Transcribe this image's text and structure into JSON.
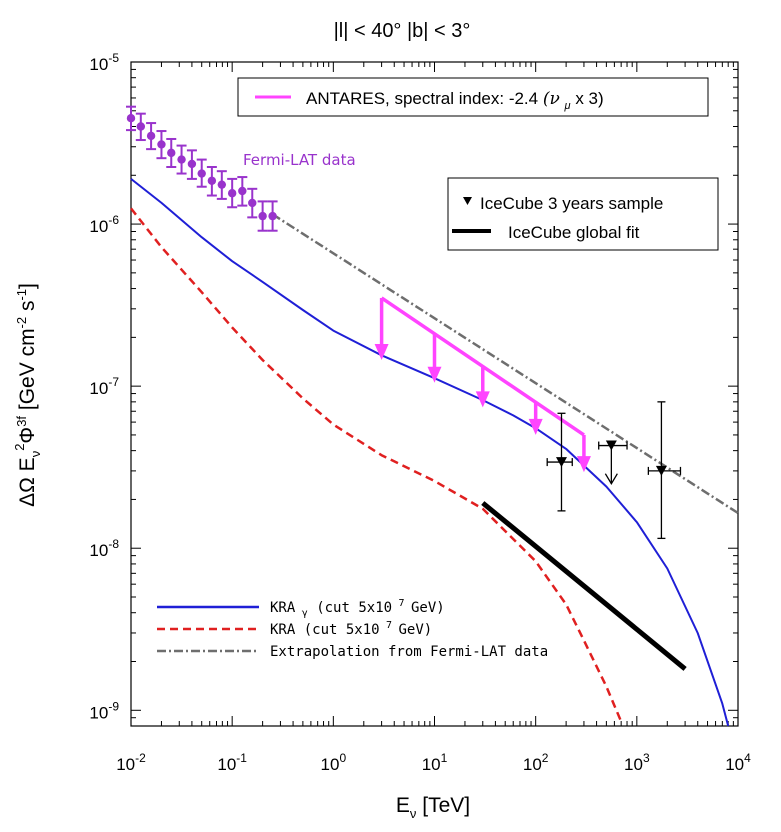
{
  "chart_data": {
    "type": "line",
    "title": "|l| < 40°   |b| < 3°",
    "xlabel": "E_ν [TeV]",
    "ylabel": "ΔΩ E_ν²Φ³ᶠ [GeV cm⁻² s⁻¹]",
    "xscale": "log",
    "yscale": "log",
    "xlim": [
      0.01,
      10000
    ],
    "ylim": [
      8e-10,
      1e-05
    ],
    "x_ticks": [
      {
        "base": "10",
        "exp": "-2"
      },
      {
        "base": "10",
        "exp": "-1"
      },
      {
        "base": "10",
        "exp": "0"
      },
      {
        "base": "10",
        "exp": "1"
      },
      {
        "base": "10",
        "exp": "2"
      },
      {
        "base": "10",
        "exp": "3"
      },
      {
        "base": "10",
        "exp": "4"
      }
    ],
    "y_ticks": [
      {
        "base": "10",
        "exp": "-5"
      },
      {
        "base": "10",
        "exp": "-6"
      },
      {
        "base": "10",
        "exp": "-7"
      },
      {
        "base": "10",
        "exp": "-8"
      },
      {
        "base": "10",
        "exp": "-9"
      }
    ],
    "series": [
      {
        "name": "KRAγ (cut 5x10⁷ GeV)",
        "color": "#1f1fd6",
        "style": "solid",
        "x": [
          0.01,
          0.02,
          0.05,
          0.1,
          0.2,
          0.5,
          1,
          3,
          10,
          30,
          60,
          100,
          200,
          500,
          1000,
          2000,
          4000,
          7000,
          8000
        ],
        "y": [
          1.9e-06,
          1.35e-06,
          8.3e-07,
          5.9e-07,
          4.4e-07,
          2.95e-07,
          2.2e-07,
          1.55e-07,
          1.12e-07,
          8.2e-08,
          6.6e-08,
          5.5e-08,
          4.1e-08,
          2.4e-08,
          1.45e-08,
          7.5e-09,
          3e-09,
          1.1e-09,
          8e-10
        ]
      },
      {
        "name": "KRA (cut 5x10⁷ GeV)",
        "color": "#e02020",
        "style": "dashed",
        "x": [
          0.01,
          0.02,
          0.05,
          0.1,
          0.2,
          0.5,
          1,
          3,
          10,
          30,
          100,
          200,
          300,
          500,
          700
        ],
        "y": [
          1.25e-06,
          7.2e-07,
          3.8e-07,
          2.3e-07,
          1.45e-07,
          8.4e-08,
          5.8e-08,
          3.75e-08,
          2.6e-08,
          1.75e-08,
          8.3e-09,
          4.5e-09,
          2.7e-09,
          1.4e-09,
          8.5e-10
        ]
      },
      {
        "name": "Extrapolation from Fermi-LAT data",
        "color": "#6e6e6e",
        "style": "dashdot",
        "x": [
          0.25,
          10000
        ],
        "y": [
          1.15e-06,
          1.65e-08
        ]
      },
      {
        "name": "IceCube global fit",
        "color": "#000000",
        "style": "thick",
        "x": [
          30,
          3000
        ],
        "y": [
          1.9e-08,
          1.8e-09
        ]
      }
    ],
    "fermi_points": {
      "name": "Fermi-LAT data",
      "color": "#9933cc",
      "x": [
        0.01,
        0.0125,
        0.0158,
        0.02,
        0.025,
        0.0316,
        0.04,
        0.05,
        0.063,
        0.079,
        0.1,
        0.126,
        0.158,
        0.2,
        0.251
      ],
      "y": [
        4.5e-06,
        4e-06,
        3.5e-06,
        3.1e-06,
        2.75e-06,
        2.5e-06,
        2.35e-06,
        2.05e-06,
        1.85e-06,
        1.75e-06,
        1.55e-06,
        1.6e-06,
        1.35e-06,
        1.12e-06,
        1.12e-06
      ],
      "err_low": [
        3.8e-06,
        3.3e-06,
        2.9e-06,
        2.55e-06,
        2.25e-06,
        2.05e-06,
        1.9e-06,
        1.7e-06,
        1.5e-06,
        1.43e-06,
        1.27e-06,
        1.3e-06,
        1.1e-06,
        9.1e-07,
        9.1e-07
      ],
      "err_high": [
        5.3e-06,
        4.8e-06,
        4.2e-06,
        3.75e-06,
        3.35e-06,
        3.05e-06,
        2.85e-06,
        2.5e-06,
        2.25e-06,
        2.12e-06,
        1.9e-06,
        1.95e-06,
        1.65e-06,
        1.38e-06,
        1.38e-06
      ]
    },
    "antares_limits": {
      "name": "ANTARES, spectral index: -2.4 (ν_μ x 3)",
      "color": "#ff44ff",
      "x_start": 3,
      "x_end": 300,
      "y_start": 3.5e-07,
      "y_end": 5e-08,
      "arrow_x": [
        3,
        10,
        30,
        100,
        300
      ],
      "arrow_tip_y": [
        1.45e-07,
        1.05e-07,
        7.4e-08,
        5e-08,
        2.95e-08
      ]
    },
    "icecube_points": [
      {
        "x": 180,
        "y": 3.4e-08,
        "y_low": 1.7e-08,
        "y_high": 6.8e-08,
        "x_low": 130,
        "x_high": 230,
        "upper_limit": false
      },
      {
        "x": 560,
        "y": 4.3e-08,
        "x_low": 420,
        "x_high": 800,
        "upper_limit": true,
        "arrow_to": 2.5e-08
      },
      {
        "x": 1750,
        "y": 3e-08,
        "y_low": 1.15e-08,
        "y_high": 8e-08,
        "x_low": 1300,
        "x_high": 2700,
        "upper_limit": false
      }
    ],
    "legend_top": "ANTARES, spectral index: -2.4",
    "legend_top_suffix": "(ν",
    "legend_top_sub": "μ",
    "legend_top_tail": "x 3)",
    "legend_ice_1": "IceCube 3 years sample",
    "legend_ice_2": "IceCube global fit",
    "legend_kra_gamma_1": "KRA",
    "legend_kra_gamma_sub": "γ",
    "legend_kra_gamma_2": " (cut 5x10",
    "legend_kra_gamma_exp": "7",
    "legend_kra_gamma_3": " GeV)",
    "legend_kra_1": "KRA (cut 5x10",
    "legend_kra_exp": "7",
    "legend_kra_2": " GeV)",
    "legend_extrap": "Extrapolation from Fermi-LAT data",
    "fermi_label": "Fermi-LAT data"
  }
}
